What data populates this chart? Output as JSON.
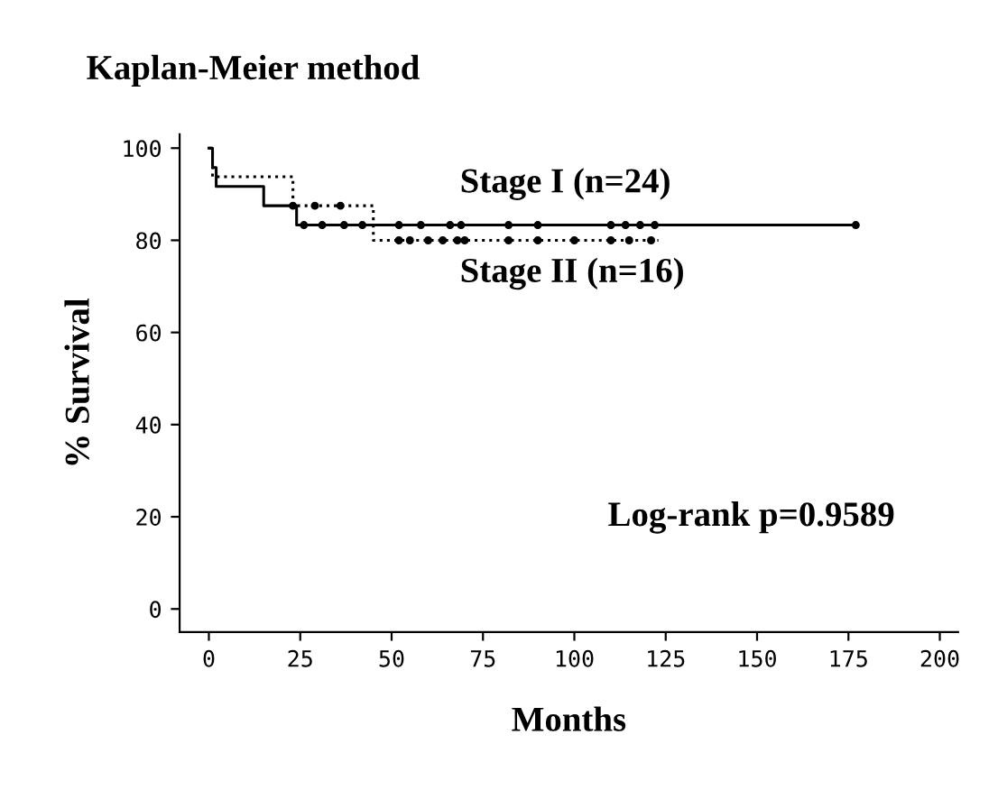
{
  "chart_data": {
    "type": "step",
    "title": "Kaplan-Meier method",
    "xlabel": "Months",
    "ylabel": "% Survival",
    "series": [
      {
        "color": "#000000",
        "line_style": "solid",
        "x": [
          0,
          1,
          2,
          15,
          24,
          177
        ],
        "values": [
          100,
          95.8,
          91.7,
          87.5,
          83.3,
          83.3
        ]
      },
      {
        "color": "#000000",
        "line_style": "dotted",
        "x": [
          0,
          1,
          23,
          45,
          123
        ],
        "values": [
          100,
          93.8,
          87.5,
          80,
          80
        ]
      },
      {
        "type": "scatter",
        "color": "#000000",
        "marker": "circle",
        "x": [
          26,
          31,
          37,
          42,
          52,
          58,
          66,
          69,
          82,
          90,
          110,
          114,
          118,
          122,
          177
        ],
        "values": [
          83.3,
          83.3,
          83.3,
          83.3,
          83.3,
          83.3,
          83.3,
          83.3,
          83.3,
          83.3,
          83.3,
          83.3,
          83.3,
          83.3,
          83.3
        ]
      },
      {
        "type": "scatter",
        "color": "#000000",
        "marker": "circle",
        "x": [
          23,
          29,
          36,
          52,
          55,
          60,
          64,
          68,
          70,
          82,
          90,
          100,
          110,
          115,
          121
        ],
        "values": [
          87.5,
          87.5,
          87.5,
          80,
          80,
          80,
          80,
          80,
          80,
          80,
          80,
          80,
          80,
          80,
          80
        ]
      }
    ],
    "annotations": [
      "Stage I (n=24)",
      "Stage II (n=16)",
      "Log-rank p=0.9589"
    ],
    "xlim": [
      -8,
      205
    ],
    "ylim": [
      -5,
      103
    ],
    "xticks": [
      0,
      25,
      50,
      75,
      100,
      125,
      150,
      175,
      200
    ],
    "yticks": [
      0,
      20,
      40,
      60,
      80,
      100
    ],
    "grid": false,
    "legend": false
  }
}
